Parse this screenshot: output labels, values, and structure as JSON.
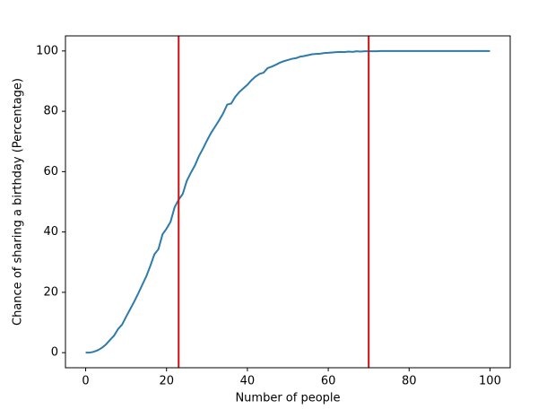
{
  "chart_data": {
    "type": "line",
    "xlabel": "Number of people",
    "ylabel": "Chance of sharing a birthday (Percentage)",
    "x": [
      0,
      1,
      2,
      3,
      4,
      5,
      6,
      7,
      8,
      9,
      10,
      11,
      12,
      13,
      14,
      15,
      16,
      17,
      18,
      19,
      20,
      21,
      22,
      23,
      24,
      25,
      26,
      27,
      28,
      29,
      30,
      31,
      32,
      33,
      34,
      35,
      36,
      37,
      38,
      39,
      40,
      41,
      42,
      43,
      44,
      45,
      46,
      47,
      48,
      49,
      50,
      51,
      52,
      53,
      54,
      55,
      56,
      57,
      58,
      59,
      60,
      61,
      62,
      63,
      64,
      65,
      66,
      67,
      68,
      69,
      70,
      71,
      72,
      73,
      74,
      75,
      76,
      77,
      78,
      79,
      80,
      81,
      82,
      83,
      84,
      85,
      86,
      87,
      88,
      89,
      90,
      91,
      92,
      93,
      94,
      95,
      96,
      97,
      98,
      99,
      100
    ],
    "series": [
      {
        "color": "#2e7bab",
        "values": [
          0,
          0,
          0.3,
          0.8,
          1.6,
          2.7,
          4.2,
          5.6,
          7.8,
          9.3,
          11.9,
          14.4,
          16.9,
          19.6,
          22.5,
          25.3,
          28.8,
          32.6,
          34.3,
          39.2,
          41.1,
          43.4,
          48.2,
          50.7,
          52.6,
          56.9,
          59.6,
          62.0,
          65.1,
          67.6,
          70.3,
          72.8,
          74.9,
          77.0,
          79.3,
          82.2,
          82.6,
          84.8,
          86.4,
          87.6,
          88.8,
          90.3,
          91.5,
          92.4,
          92.8,
          94.3,
          94.8,
          95.4,
          96.1,
          96.6,
          97.0,
          97.4,
          97.6,
          98.1,
          98.3,
          98.6,
          98.9,
          99.0,
          99.1,
          99.3,
          99.4,
          99.5,
          99.6,
          99.7,
          99.6,
          99.8,
          99.7,
          99.9,
          99.8,
          99.9,
          99.9,
          99.9,
          99.9,
          100,
          100,
          100,
          100,
          100,
          100,
          100,
          100,
          100,
          100,
          100,
          100,
          100,
          100,
          100,
          100,
          100,
          100,
          100,
          100,
          100,
          100,
          100,
          100,
          100,
          100,
          100,
          100
        ]
      }
    ],
    "vlines": [
      23,
      70
    ],
    "vline_color": "#cc1111",
    "xlim": [
      -5,
      105
    ],
    "ylim": [
      -5,
      105
    ],
    "xticks": [
      0,
      20,
      40,
      60,
      80,
      100
    ],
    "yticks": [
      0,
      20,
      40,
      60,
      80,
      100
    ]
  }
}
